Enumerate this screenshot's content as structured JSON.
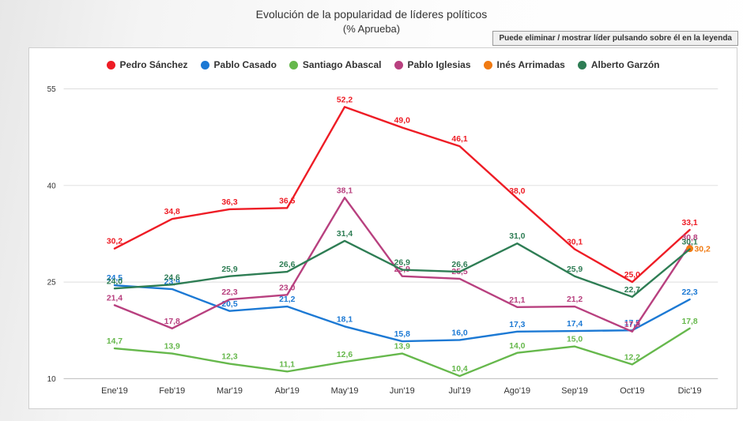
{
  "page": {
    "title": "Evolución de la popularidad de líderes políticos",
    "subtitle": "(% Aprueba)",
    "hint": "Puede eliminar / mostrar líder pulsando sobre él en la leyenda"
  },
  "chart_data": {
    "type": "line",
    "title": "Evolución de la popularidad de líderes políticos",
    "subtitle": "(% Aprueba)",
    "categories": [
      "Ene'19",
      "Feb'19",
      "Mar'19",
      "Abr'19",
      "May'19",
      "Jun'19",
      "Jul'19",
      "Ago'19",
      "Sep'19",
      "Oct'19",
      "Dic'19"
    ],
    "yticks": [
      10,
      25,
      40,
      55
    ],
    "ylim": [
      8.5,
      56.5
    ],
    "grid": true,
    "legend_position": "top",
    "decimal_separator": ",",
    "series": [
      {
        "name": "Pedro Sánchez",
        "color": "#ee1c25",
        "values": [
          30.2,
          34.8,
          36.3,
          36.5,
          52.2,
          49.0,
          46.1,
          38.0,
          30.1,
          25.0,
          33.1
        ]
      },
      {
        "name": "Pablo Casado",
        "color": "#1c79d4",
        "values": [
          24.5,
          23.9,
          20.5,
          21.2,
          18.1,
          15.8,
          16.0,
          17.3,
          17.4,
          17.5,
          22.3
        ]
      },
      {
        "name": "Santiago Abascal",
        "color": "#66b84c",
        "values": [
          14.7,
          13.9,
          12.3,
          11.1,
          12.6,
          13.9,
          10.4,
          14.0,
          15.0,
          12.2,
          17.8
        ]
      },
      {
        "name": "Pablo Iglesias",
        "color": "#b8407f",
        "values": [
          21.4,
          17.8,
          22.3,
          23.0,
          38.1,
          25.9,
          25.5,
          21.1,
          21.2,
          17.3,
          30.8
        ]
      },
      {
        "name": "Inés Arrimadas",
        "color": "#f07a12",
        "values": [
          null,
          null,
          null,
          null,
          null,
          null,
          null,
          null,
          null,
          null,
          30.2
        ]
      },
      {
        "name": "Alberto Garzón",
        "color": "#2e7d54",
        "values": [
          24.0,
          24.6,
          25.9,
          26.6,
          31.4,
          26.9,
          26.6,
          31.0,
          25.9,
          22.7,
          30.1
        ]
      }
    ]
  }
}
